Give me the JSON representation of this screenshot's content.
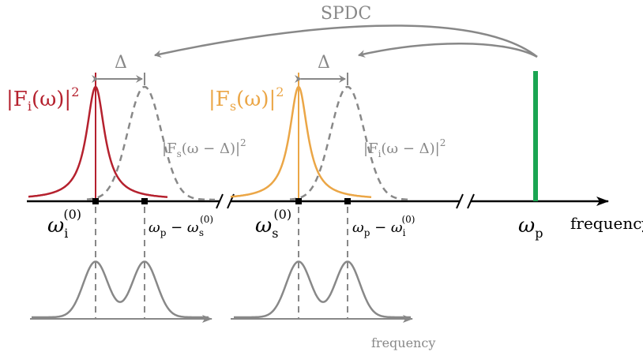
{
  "title": "SPDC",
  "labels": {
    "delta": "Δ",
    "idler_spectrum": "|F",
    "idler_sub": "i",
    "idler_rest": "(ω)|",
    "idler_sup": "2",
    "signal_spectrum": "|F",
    "signal_sub": "s",
    "signal_rest": "(ω)|",
    "signal_sup": "2",
    "shifted_signal": "|F",
    "shifted_signal_sub": "s",
    "shifted_signal_rest": "(ω − Δ)|",
    "shifted_signal_sup": "2",
    "shifted_idler": "|F",
    "shifted_idler_sub": "i",
    "shifted_idler_rest": "(ω − Δ)|",
    "shifted_idler_sup": "2",
    "omega": "ω",
    "omega_i0_sub": "i",
    "omega_s0_sub": "s",
    "superscript_0": "(0)",
    "omega_p_sub": "p",
    "minus": " − ",
    "frequency_axis": "frequency",
    "frequency_bottom": "frequency"
  },
  "colors": {
    "idler": "#b5212e",
    "signal": "#eba646",
    "pump": "#1aa552",
    "gray": "#888888",
    "axis": "#000000"
  }
}
